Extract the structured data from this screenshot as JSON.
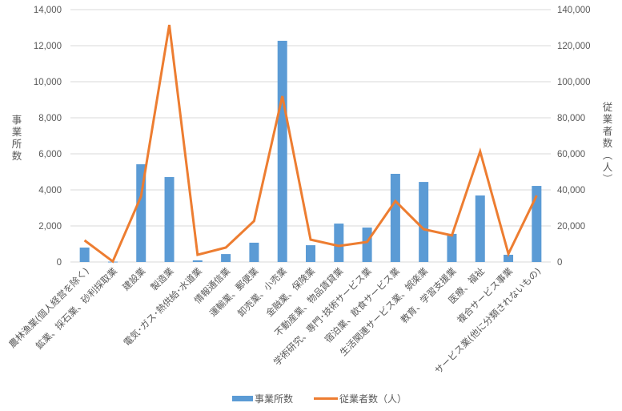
{
  "chart_data": {
    "type": "bar+line",
    "title": "",
    "categories": [
      "農林漁業(個人経営を除く)",
      "鉱業、採石業、砂利採取業",
      "建設業",
      "製造業",
      "電気･ガス･熱供給･水道業",
      "情報通信業",
      "運輸業、郵便業",
      "卸売業、小売業",
      "金融業、保険業",
      "不動産業、物品賃貸業",
      "学術研究、専門･技術サービス業",
      "宿泊業、飲食サービス業",
      "生活関連サービス業、娯楽業",
      "教育、学習支援業",
      "医療、福祉",
      "複合サービス事業",
      "サービス業(他に分類されないもの)"
    ],
    "series": [
      {
        "name": "事業所数",
        "type": "bar",
        "axis": "left",
        "color": "#5b9bd5",
        "values": [
          800,
          20,
          5420,
          4710,
          90,
          440,
          1070,
          12270,
          930,
          2130,
          1910,
          4890,
          4440,
          1560,
          3690,
          400,
          4220
        ]
      },
      {
        "name": "従業者数(人)",
        "type": "line",
        "axis": "right",
        "color": "#ed7d31",
        "values": [
          12000,
          300,
          36400,
          131500,
          4000,
          8000,
          22700,
          92000,
          12400,
          8900,
          11100,
          33800,
          18200,
          14700,
          61300,
          4500,
          36900
        ]
      }
    ],
    "ylabel": "事業所数",
    "ylabel_right": "従業者数(人)",
    "ylim": [
      0,
      14000
    ],
    "ylim_right": [
      0,
      140000
    ],
    "yticks": [
      "0",
      "2,000",
      "4,000",
      "6,000",
      "8,000",
      "10,000",
      "12,000",
      "14,000"
    ],
    "yticks_right": [
      "0",
      "20,000",
      "40,000",
      "60,000",
      "80,000",
      "100,000",
      "120,000",
      "140,000"
    ],
    "grid": true,
    "legend_position": "bottom"
  },
  "legend": {
    "bar_label": "事業所数",
    "line_label": "従業者数（人）"
  }
}
